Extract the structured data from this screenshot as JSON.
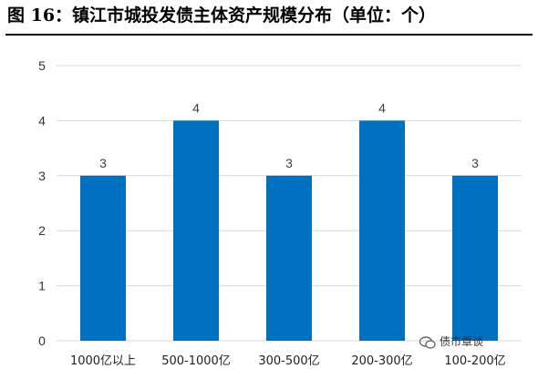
{
  "title": "图 16：镇江市城投发债主体资产规模分布（单位：个）",
  "watermark": "债市覃谈",
  "chart_data": {
    "type": "bar",
    "categories": [
      "1000亿以上",
      "500-1000亿",
      "300-500亿",
      "200-300亿",
      "100-200亿"
    ],
    "values": [
      3,
      4,
      3,
      4,
      3
    ],
    "ylim": [
      0,
      5
    ],
    "yticks": [
      0,
      1,
      2,
      3,
      4,
      5
    ],
    "data_labels": true,
    "grid": true,
    "bar_color": "#0070C0",
    "grid_color": "#d9d9d9"
  }
}
